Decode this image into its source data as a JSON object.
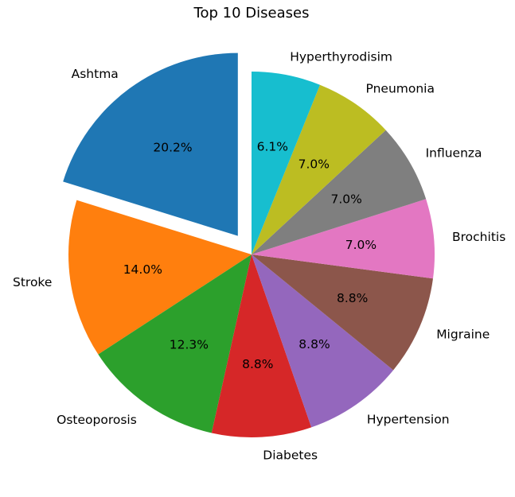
{
  "chart_data": {
    "type": "pie",
    "title": "Top 10 Diseases",
    "categories": [
      "Ashtma",
      "Stroke",
      "Osteoporosis",
      "Diabetes",
      "Hypertension",
      "Migraine",
      "Brochitis",
      "Influenza",
      "Pneumonia",
      "Hyperthyrodisim"
    ],
    "percent_labels": [
      "20.2%",
      "14.0%",
      "12.3%",
      "8.8%",
      "8.8%",
      "8.8%",
      "7.0%",
      "7.0%",
      "7.0%",
      "6.1%"
    ],
    "values": [
      20.2,
      14.0,
      12.3,
      8.8,
      8.8,
      8.8,
      7.0,
      7.0,
      7.0,
      6.1
    ],
    "colors": [
      "#1f77b4",
      "#ff7f0e",
      "#2ca02c",
      "#d62728",
      "#9467bd",
      "#8c564b",
      "#e377c2",
      "#7f7f7f",
      "#bcbd22",
      "#17becf"
    ],
    "exploded": [
      "Ashtma"
    ],
    "start_angle_deg": 90,
    "direction": "counterclockwise",
    "legend": false
  }
}
